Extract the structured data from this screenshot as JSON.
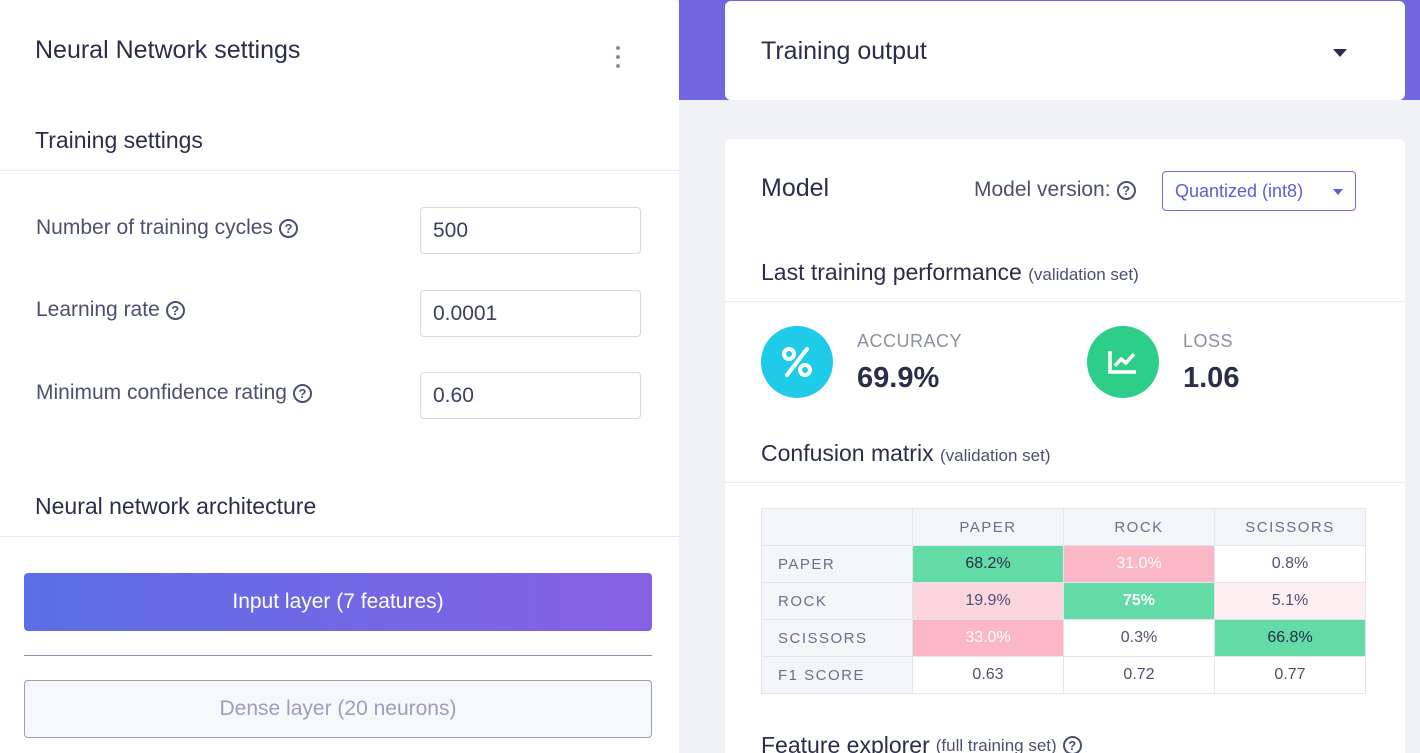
{
  "left": {
    "title": "Neural Network settings",
    "training_settings_heading": "Training settings",
    "fields": [
      {
        "label": "Number of training cycles",
        "value": "500"
      },
      {
        "label": "Learning rate",
        "value": "0.0001"
      },
      {
        "label": "Minimum confidence rating",
        "value": "0.60"
      }
    ],
    "architecture_heading": "Neural network architecture",
    "input_layer": "Input layer (7 features)",
    "dense_layer": "Dense layer (20 neurons)"
  },
  "right": {
    "training_output_title": "Training output",
    "model_title": "Model",
    "model_version_label": "Model version:",
    "model_version_value": "Quantized (int8)",
    "last_perf_heading": "Last training performance",
    "last_perf_note": "(validation set)",
    "accuracy_label": "ACCURACY",
    "accuracy_value": "69.9%",
    "loss_label": "LOSS",
    "loss_value": "1.06",
    "confusion_heading": "Confusion matrix",
    "confusion_note": "(validation set)",
    "feature_heading": "Feature explorer",
    "feature_note": "(full training set)"
  },
  "confusion_matrix": {
    "columns": [
      "PAPER",
      "ROCK",
      "SCISSORS"
    ],
    "rows": [
      {
        "label": "PAPER",
        "cells": [
          "68.2%",
          "31.0%",
          "0.8%"
        ]
      },
      {
        "label": "ROCK",
        "cells": [
          "19.9%",
          "75%",
          "5.1%"
        ]
      },
      {
        "label": "SCISSORS",
        "cells": [
          "33.0%",
          "0.3%",
          "66.8%"
        ]
      },
      {
        "label": "F1 SCORE",
        "cells": [
          "0.63",
          "0.72",
          "0.77"
        ]
      }
    ]
  },
  "colors": {
    "accent_purple": "#7267e0",
    "accuracy_icon": "#1ecbe8",
    "loss_icon": "#2dce89",
    "cm_correct": "#63dba6",
    "cm_error_strong": "#fbb7c6",
    "cm_error_medium": "#fcd6de",
    "cm_error_light": "#fef0f2"
  }
}
